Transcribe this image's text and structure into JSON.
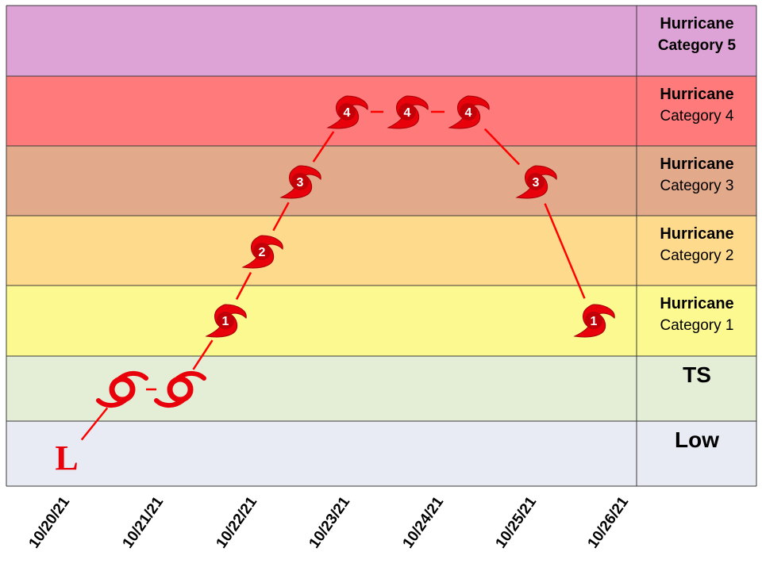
{
  "chart_data": {
    "type": "scatter",
    "bands": [
      {
        "key": "cat5",
        "title": "Hurricane",
        "subtitle": "Category 5",
        "color": "#dda3d6"
      },
      {
        "key": "cat4",
        "title": "Hurricane",
        "subtitle": "Category 4",
        "color": "#ff7b7b"
      },
      {
        "key": "cat3",
        "title": "Hurricane",
        "subtitle": "Category 3",
        "color": "#e2a98a"
      },
      {
        "key": "cat2",
        "title": "Hurricane",
        "subtitle": "Category 2",
        "color": "#fdda8c"
      },
      {
        "key": "cat1",
        "title": "Hurricane",
        "subtitle": "Category 1",
        "color": "#fcf990"
      },
      {
        "key": "ts",
        "title": "TS",
        "subtitle": "",
        "color": "#e4eed7"
      },
      {
        "key": "low",
        "title": "Low",
        "subtitle": "",
        "color": "#e9ebf4"
      }
    ],
    "x_labels": [
      "10/20/21",
      "10/21/21",
      "10/22/21",
      "10/23/21",
      "10/24/21",
      "10/25/21",
      "10/26/21"
    ],
    "track": [
      {
        "date": "10/20/21",
        "intensity": "low",
        "marker": "L"
      },
      {
        "date": "10/20/21",
        "intensity": "ts",
        "marker": ""
      },
      {
        "date": "10/21/21",
        "intensity": "ts",
        "marker": ""
      },
      {
        "date": "10/21/21",
        "intensity": "cat1",
        "marker": "1"
      },
      {
        "date": "10/22/21",
        "intensity": "cat2",
        "marker": "2"
      },
      {
        "date": "10/22/21",
        "intensity": "cat3",
        "marker": "3"
      },
      {
        "date": "10/23/21",
        "intensity": "cat4",
        "marker": "4"
      },
      {
        "date": "10/23/21",
        "intensity": "cat4",
        "marker": "4"
      },
      {
        "date": "10/24/21",
        "intensity": "cat4",
        "marker": "4"
      },
      {
        "date": "10/25/21",
        "intensity": "cat3",
        "marker": "3"
      },
      {
        "date": "10/25/21",
        "intensity": "cat1",
        "marker": "1"
      }
    ],
    "marker_color": "#e8000b",
    "line_color": "#ff0000",
    "grid": true,
    "legend": "right"
  }
}
